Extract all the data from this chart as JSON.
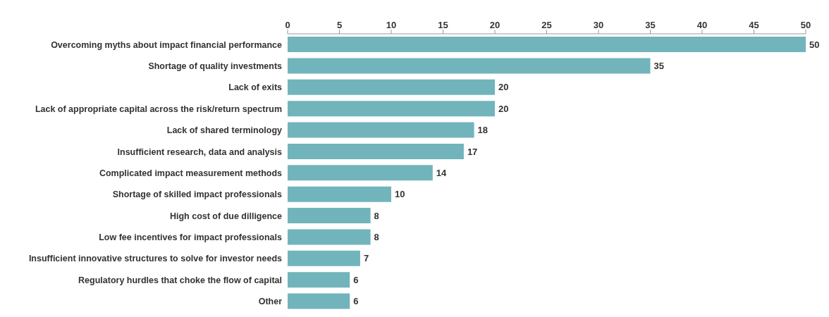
{
  "chart_data": {
    "type": "bar",
    "orientation": "horizontal",
    "categories": [
      "Overcoming myths about impact financial performance",
      "Shortage of quality investments",
      "Lack of exits",
      "Lack of appropriate capital across the risk/return spectrum",
      "Lack of shared terminology",
      "Insufficient research, data and analysis",
      "Complicated impact measurement methods",
      "Shortage of skilled impact professionals",
      "High cost of due dilligence",
      "Low fee incentives for impact professionals",
      "Insufficient innovative structures to solve for investor needs",
      "Regulatory hurdles that choke the flow of capital",
      "Other"
    ],
    "values": [
      50,
      35,
      20,
      20,
      18,
      17,
      14,
      10,
      8,
      8,
      7,
      6,
      6
    ],
    "color": "#72b4bc",
    "xlim": [
      0,
      50
    ],
    "xticks": [
      0,
      5,
      10,
      15,
      20,
      25,
      30,
      35,
      40,
      45,
      50
    ],
    "data_labels": true,
    "grid": false
  }
}
